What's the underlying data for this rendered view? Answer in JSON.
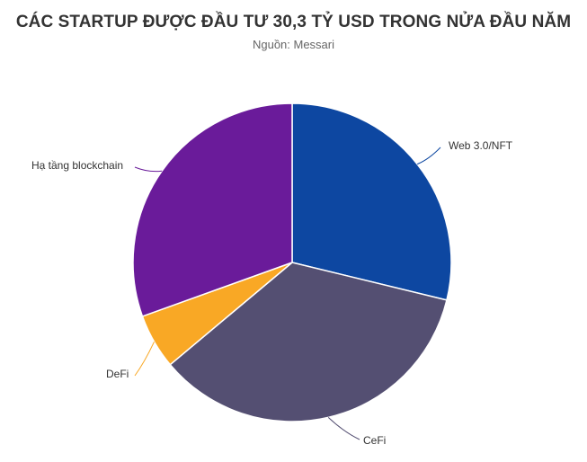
{
  "chart_data": {
    "type": "pie",
    "title": "CÁC STARTUP ĐƯỢC ĐẦU TƯ 30,3 TỶ USD TRONG NỬA ĐẦU NĂM",
    "subtitle": "Nguồn: Messari",
    "categories": [
      "Web 3.0/NFT",
      "CeFi",
      "DeFi",
      "Hạ tầng blockchain"
    ],
    "values": [
      28.8,
      35.1,
      5.6,
      30.5
    ],
    "unit": "%",
    "colors": [
      "#0d47a1",
      "#544f72",
      "#f9a825",
      "#6a1b9a"
    ],
    "legend": "none",
    "start_angle_deg": 0,
    "direction": "clockwise"
  }
}
